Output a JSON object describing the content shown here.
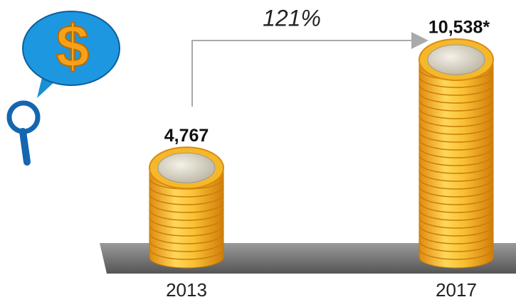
{
  "chart_data": {
    "type": "bar",
    "badge": "$",
    "annotation": "121%",
    "categories": [
      "2013",
      "2017"
    ],
    "values": [
      4767,
      10538
    ],
    "value_labels": [
      "4,767",
      "10,538*"
    ],
    "color": "#f5b82a"
  }
}
